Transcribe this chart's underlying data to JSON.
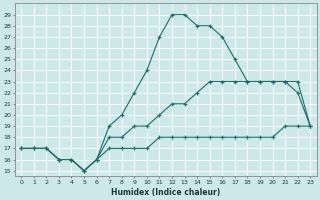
{
  "xlabel": "Humidex (Indice chaleur)",
  "bg_color": "#cce8e8",
  "grid_color": "#b0d4d4",
  "line_color": "#1a6e6e",
  "xlim": [
    -0.5,
    23.5
  ],
  "ylim": [
    14.5,
    30.0
  ],
  "xticks": [
    0,
    1,
    2,
    3,
    4,
    5,
    6,
    7,
    8,
    9,
    10,
    11,
    12,
    13,
    14,
    15,
    16,
    17,
    18,
    19,
    20,
    21,
    22,
    23
  ],
  "yticks": [
    15,
    16,
    17,
    18,
    19,
    20,
    21,
    22,
    23,
    24,
    25,
    26,
    27,
    28,
    29
  ],
  "curve1_x": [
    0,
    1,
    2,
    3,
    4,
    5,
    6,
    7,
    8,
    9,
    10,
    11,
    12,
    13,
    14,
    15,
    16,
    17,
    18,
    19,
    20,
    21,
    22,
    23
  ],
  "curve1_y": [
    17,
    17,
    17,
    16,
    16,
    15,
    16,
    19,
    20,
    22,
    24,
    27,
    29,
    29,
    28,
    28,
    27,
    25,
    23,
    23,
    23,
    23,
    22,
    19
  ],
  "curve2_x": [
    0,
    1,
    2,
    3,
    4,
    5,
    6,
    7,
    8,
    9,
    10,
    11,
    12,
    13,
    14,
    15,
    16,
    17,
    18,
    19,
    20,
    21,
    22,
    23
  ],
  "curve2_y": [
    17,
    17,
    17,
    16,
    16,
    15,
    16,
    18,
    18,
    19,
    19,
    20,
    21,
    21,
    22,
    23,
    23,
    23,
    23,
    23,
    23,
    23,
    23,
    19
  ],
  "curve3_x": [
    0,
    1,
    2,
    3,
    4,
    5,
    6,
    7,
    8,
    9,
    10,
    11,
    12,
    13,
    14,
    15,
    16,
    17,
    18,
    19,
    20,
    21,
    22,
    23
  ],
  "curve3_y": [
    17,
    17,
    17,
    16,
    16,
    15,
    16,
    17,
    17,
    17,
    17,
    18,
    18,
    18,
    18,
    18,
    18,
    18,
    18,
    18,
    18,
    19,
    19,
    19
  ]
}
